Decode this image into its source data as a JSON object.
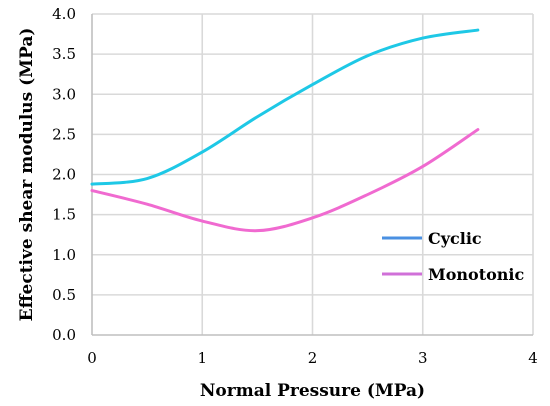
{
  "chart_data": {
    "type": "line",
    "title": "",
    "xlabel": "Normal Pressure (MPa)",
    "ylabel": "Effective shear modulus (MPa)",
    "xlim": [
      0,
      4
    ],
    "ylim": [
      0,
      4.0
    ],
    "x_ticks": [
      "0",
      "1",
      "2",
      "3",
      "4"
    ],
    "y_ticks": [
      "0.0",
      "0.5",
      "1.0",
      "1.5",
      "2.0",
      "2.5",
      "3.0",
      "3.5",
      "4.0"
    ],
    "grid": true,
    "legend_position": "right",
    "series": [
      {
        "name": "Cyclic",
        "color": "#1ec8e6",
        "legend_color": "#4a90e2",
        "x": [
          0,
          0.5,
          1.0,
          1.5,
          2.0,
          2.5,
          3.0,
          3.5
        ],
        "y": [
          1.88,
          1.95,
          2.28,
          2.72,
          3.12,
          3.48,
          3.7,
          3.8
        ]
      },
      {
        "name": "Monotonic",
        "color": "#f06ad0",
        "legend_color": "#d070d8",
        "x": [
          0,
          0.5,
          1.0,
          1.5,
          2.0,
          2.5,
          3.0,
          3.5
        ],
        "y": [
          1.8,
          1.63,
          1.42,
          1.3,
          1.46,
          1.75,
          2.1,
          2.56
        ]
      }
    ]
  }
}
